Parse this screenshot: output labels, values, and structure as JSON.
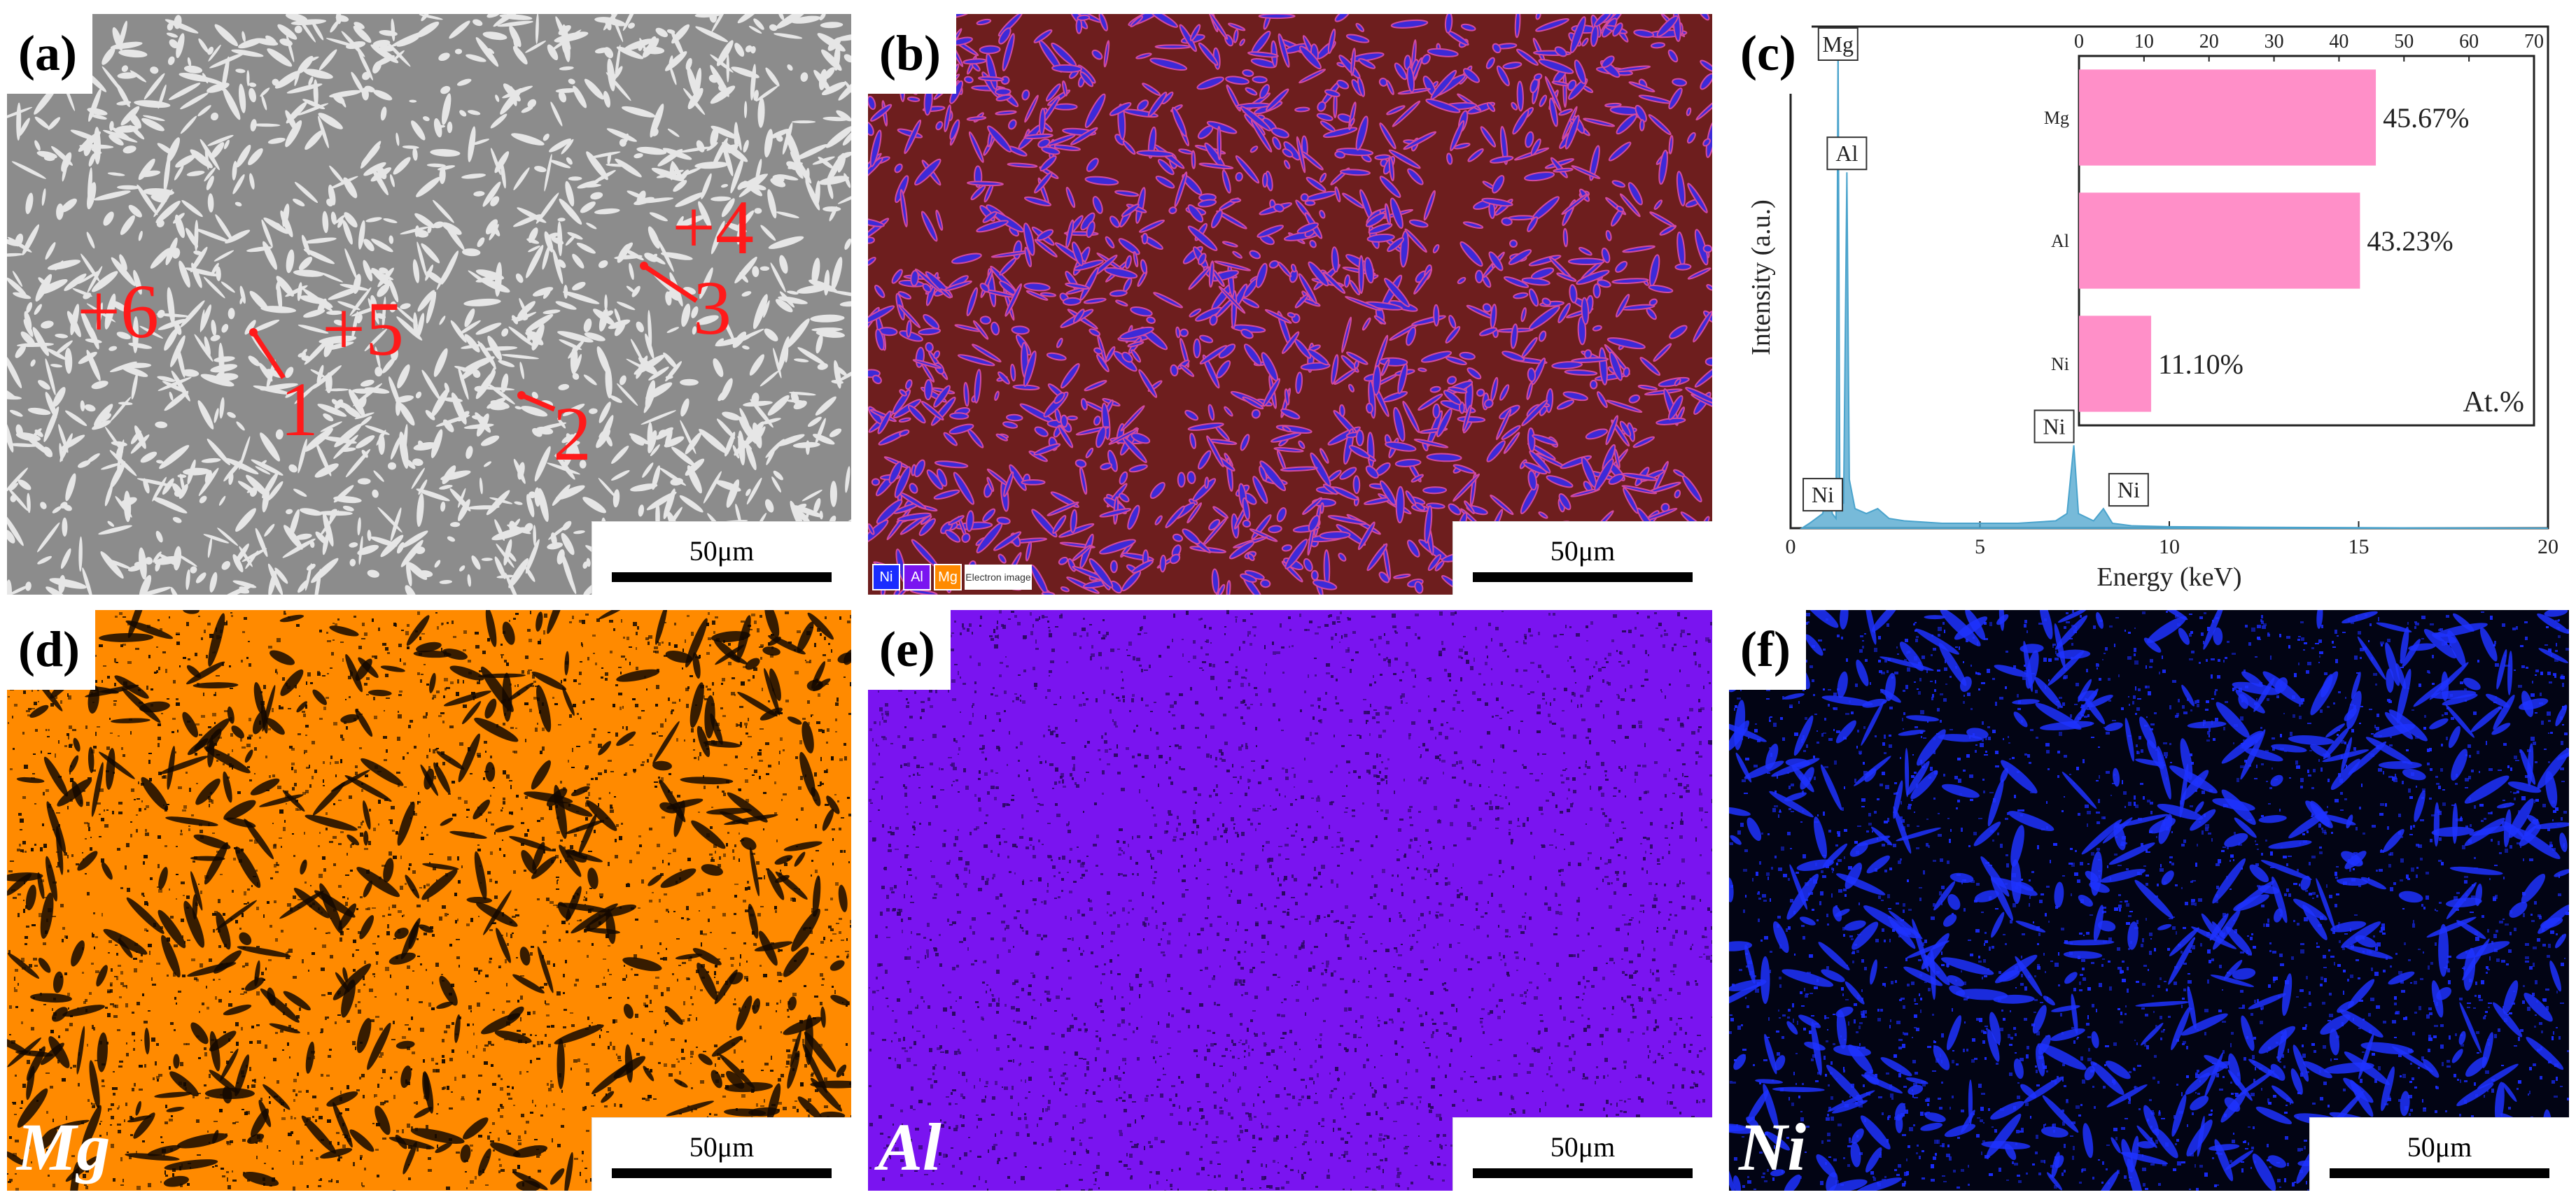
{
  "panels": {
    "a": {
      "label": "(a)",
      "scale": "50μm",
      "markers": [
        "+6",
        "+5",
        "+4",
        "1",
        "2",
        "3"
      ]
    },
    "b": {
      "label": "(b)",
      "scale": "50μm",
      "legend": [
        "Ni",
        "Al",
        "Mg"
      ],
      "legend_image": "Electron image",
      "colors": {
        "background": "#6e1e1e",
        "phase": "#3c2ad8",
        "edge": "#d24aa0"
      }
    },
    "c": {
      "label": "(c)"
    },
    "d": {
      "label": "(d)",
      "scale": "50μm",
      "element": "Mg",
      "color": "#ff8a00"
    },
    "e": {
      "label": "(e)",
      "scale": "50μm",
      "element": "Al",
      "color": "#7a14f0"
    },
    "f": {
      "label": "(f)",
      "scale": "50μm",
      "element": "Ni",
      "color": "#1a2cff"
    }
  },
  "chart_data": [
    {
      "type": "line",
      "xlabel": "Energy (keV)",
      "ylabel": "Intensity (a.u.)",
      "xlim": [
        0,
        20
      ],
      "xticks": [
        0,
        5,
        10,
        15,
        20
      ],
      "ylim": [
        0,
        100
      ],
      "series": [
        {
          "x": [
            0.3,
            0.5,
            0.85,
            1.0,
            1.1,
            1.2,
            1.253,
            1.3,
            1.4,
            1.486,
            1.55,
            1.7,
            2.0,
            2.3,
            2.6,
            3.0,
            4.0,
            5.0,
            6.0,
            7.0,
            7.3,
            7.478,
            7.6,
            8.0,
            8.26,
            8.5,
            9.0,
            10.0,
            12.0,
            15.0,
            20.0
          ],
          "y": [
            0,
            1,
            3,
            10,
            3,
            2,
            100,
            8,
            5,
            73,
            10,
            4,
            3,
            4,
            2,
            1.5,
            1,
            1,
            1,
            1.5,
            3,
            17,
            3,
            1.5,
            4,
            1,
            0.5,
            0.3,
            0.2,
            0.1,
            0
          ]
        }
      ],
      "annotations": [
        {
          "text": "Mg",
          "x": 1.253
        },
        {
          "text": "Al",
          "x": 1.486
        },
        {
          "text": "Ni",
          "x": 0.851
        },
        {
          "text": "Ni",
          "x": 7.478
        },
        {
          "text": "Ni",
          "x": 8.26
        }
      ],
      "color": "#4aa3cc"
    },
    {
      "type": "bar",
      "orientation": "horizontal",
      "categories": [
        "Mg",
        "Al",
        "Ni"
      ],
      "values": [
        45.67,
        43.23,
        11.1
      ],
      "data_labels": [
        "45.67%",
        "43.23%",
        "11.10%"
      ],
      "xlim": [
        0,
        70
      ],
      "xticks": [
        0,
        10,
        20,
        30,
        40,
        50,
        60,
        70
      ],
      "annotation": "At.%",
      "color": "#ff8fc8"
    }
  ]
}
